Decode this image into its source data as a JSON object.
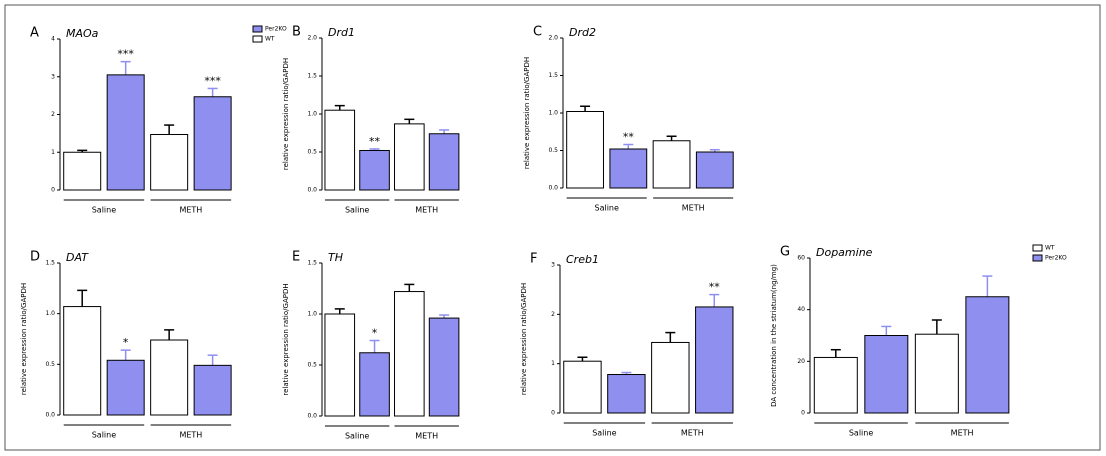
{
  "chart_data": [
    {
      "type": "bar",
      "label": "A",
      "title": "MAOa",
      "categories": [
        "Saline",
        "METH"
      ],
      "legend": "top-right",
      "series": [
        {
          "name": "WT",
          "color": "#ffffff",
          "values": [
            1.0,
            1.47
          ],
          "errors": [
            0.05,
            0.25
          ],
          "stars": [
            null,
            null
          ]
        },
        {
          "name": "Per2KO",
          "color": "#8f8fef",
          "values": [
            3.05,
            2.47
          ],
          "errors": [
            0.35,
            0.22
          ],
          "stars": [
            "***",
            "***"
          ]
        }
      ],
      "ylim": [
        0,
        4
      ],
      "yticks": [
        0,
        1,
        2,
        3,
        4
      ]
    },
    {
      "type": "bar",
      "label": "B",
      "title": "Drd1",
      "ylabel": "relative expression ratio/GAPDH",
      "categories": [
        "Saline",
        "METH"
      ],
      "series": [
        {
          "color": "#ffffff",
          "values": [
            1.05,
            0.87
          ],
          "errors": [
            0.06,
            0.06
          ],
          "stars": [
            null,
            null
          ]
        },
        {
          "color": "#8f8fef",
          "values": [
            0.52,
            0.74
          ],
          "errors": [
            0.02,
            0.05
          ],
          "stars": [
            "**",
            null
          ]
        }
      ],
      "ylim": [
        0,
        2
      ],
      "yticks": [
        {
          "value": 0,
          "label": "0.0"
        },
        {
          "value": 0.5,
          "label": "0.5"
        },
        {
          "value": 1,
          "label": "1.0"
        },
        {
          "value": 1.5,
          "label": "1.5"
        },
        {
          "value": 2,
          "label": "2.0"
        }
      ]
    },
    {
      "type": "bar",
      "label": "C",
      "title": "Drd2",
      "ylabel": "relative expression ratio/GAPDH",
      "categories": [
        "Saline",
        "METH"
      ],
      "series": [
        {
          "color": "#ffffff",
          "values": [
            1.02,
            0.63
          ],
          "errors": [
            0.07,
            0.06
          ],
          "stars": [
            null,
            null
          ]
        },
        {
          "color": "#8f8fef",
          "values": [
            0.52,
            0.48
          ],
          "errors": [
            0.06,
            0.03
          ],
          "stars": [
            "**",
            null
          ]
        }
      ],
      "ylim": [
        0,
        2
      ],
      "yticks": [
        {
          "value": 0,
          "label": "0.0"
        },
        {
          "value": 0.5,
          "label": "0.5"
        },
        {
          "value": 1,
          "label": "1.0"
        },
        {
          "value": 1.5,
          "label": "1.5"
        },
        {
          "value": 2,
          "label": "2.0"
        }
      ]
    },
    {
      "type": "bar",
      "label": "D",
      "title": "DAT",
      "ylabel": "relative expression ratio/GAPDH",
      "categories": [
        "Saline",
        "METH"
      ],
      "series": [
        {
          "color": "#ffffff",
          "values": [
            1.07,
            0.74
          ],
          "errors": [
            0.16,
            0.1
          ],
          "stars": [
            null,
            null
          ]
        },
        {
          "color": "#8f8fef",
          "values": [
            0.54,
            0.49
          ],
          "errors": [
            0.1,
            0.1
          ],
          "stars": [
            "*",
            null
          ]
        }
      ],
      "ylim": [
        0,
        1.5
      ],
      "yticks": [
        {
          "value": 0,
          "label": "0.0"
        },
        {
          "value": 0.5,
          "label": "0.5"
        },
        {
          "value": 1,
          "label": "1.0"
        },
        {
          "value": 1.5,
          "label": "1.5"
        }
      ]
    },
    {
      "type": "bar",
      "label": "E",
      "title": "TH",
      "ylabel": "relative expression ratio/GAPDH",
      "categories": [
        "Saline",
        "METH"
      ],
      "series": [
        {
          "color": "#ffffff",
          "values": [
            1.0,
            1.22
          ],
          "errors": [
            0.05,
            0.07
          ],
          "stars": [
            null,
            null
          ]
        },
        {
          "color": "#8f8fef",
          "values": [
            0.62,
            0.96
          ],
          "errors": [
            0.12,
            0.03
          ],
          "stars": [
            "*",
            null
          ]
        }
      ],
      "ylim": [
        0,
        1.5
      ],
      "yticks": [
        {
          "value": 0,
          "label": "0.0"
        },
        {
          "value": 0.5,
          "label": "0.5"
        },
        {
          "value": 1,
          "label": "1.0"
        },
        {
          "value": 1.5,
          "label": "1.5"
        }
      ]
    },
    {
      "type": "bar",
      "label": "F",
      "title": "Creb1",
      "ylabel": "relative expression ratio/GAPDH",
      "categories": [
        "Saline",
        "METH"
      ],
      "series": [
        {
          "color": "#ffffff",
          "values": [
            1.05,
            1.43
          ],
          "errors": [
            0.08,
            0.2
          ],
          "stars": [
            null,
            null
          ]
        },
        {
          "color": "#8f8fef",
          "values": [
            0.78,
            2.15
          ],
          "errors": [
            0.04,
            0.25
          ],
          "stars": [
            null,
            "**"
          ]
        }
      ],
      "ylim": [
        0,
        3
      ],
      "yticks": [
        0,
        1,
        2,
        3
      ]
    },
    {
      "type": "bar",
      "label": "G",
      "title": "Dopamine",
      "ylabel": "DA concentration in the striatum(ng/mg)",
      "categories": [
        "Saline",
        "METH"
      ],
      "legend": "top-right",
      "series": [
        {
          "name": "WT",
          "color": "#ffffff",
          "values": [
            21.5,
            30.5
          ],
          "errors": [
            3,
            5.5
          ],
          "stars": [
            null,
            null
          ]
        },
        {
          "name": "Per2KO",
          "color": "#8f8fef",
          "values": [
            30,
            45
          ],
          "errors": [
            3.5,
            8
          ],
          "stars": [
            null,
            null
          ]
        }
      ],
      "ylim": [
        0,
        60
      ],
      "yticks": [
        0,
        20,
        40,
        60
      ]
    }
  ]
}
